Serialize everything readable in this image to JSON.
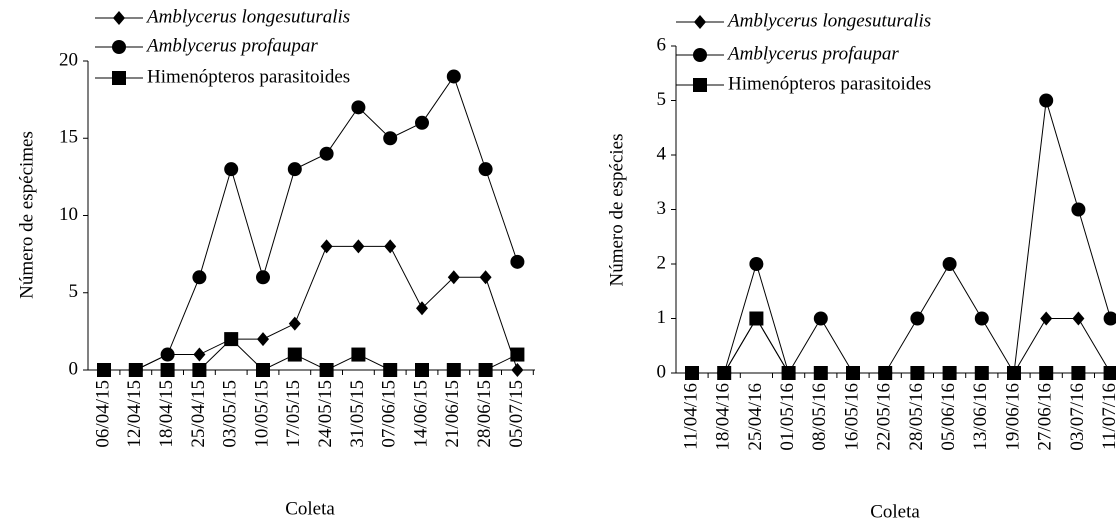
{
  "chart_data": [
    {
      "type": "line",
      "categories": [
        "06/04/15",
        "12/04/15",
        "18/04/15",
        "25/04/15",
        "03/05/15",
        "10/05/15",
        "17/05/15",
        "24/05/15",
        "31/05/15",
        "07/06/15",
        "14/06/15",
        "21/06/15",
        "28/06/15",
        "05/07/15"
      ],
      "series": [
        {
          "name": "Amblycerus longesuturalis",
          "color": "#000000",
          "marker": "diamond",
          "values": [
            0,
            0,
            1,
            1,
            2,
            2,
            3,
            8,
            8,
            8,
            4,
            6,
            6,
            0
          ]
        },
        {
          "name": "Amblycerus profaupar",
          "color": "#000000",
          "marker": "circle",
          "values": [
            0,
            0,
            1,
            6,
            13,
            6,
            13,
            14,
            17,
            15,
            16,
            19,
            13,
            7
          ]
        },
        {
          "name": "Himenópteros parasitoides",
          "color": "#000000",
          "marker": "square",
          "values": [
            0,
            0,
            0,
            0,
            2,
            0,
            1,
            0,
            1,
            0,
            0,
            0,
            0,
            1
          ]
        }
      ],
      "ylabel": "Número de espécimes",
      "xlabel": "Coleta",
      "ylim": [
        0,
        20
      ],
      "yticks": [
        0,
        5,
        10,
        15,
        20
      ],
      "legend": "upper left"
    },
    {
      "type": "line",
      "categories": [
        "11/04/16",
        "18/04/16",
        "25/04/16",
        "01/05/16",
        "08/05/16",
        "16/05/16",
        "22/05/16",
        "28/05/16",
        "05/06/16",
        "13/06/16",
        "19/06/16",
        "27/06/16",
        "03/07/16",
        "11/07/16"
      ],
      "series": [
        {
          "name": "Amblycerus longesuturalis",
          "color": "#000000",
          "marker": "diamond",
          "values": [
            0,
            0,
            1,
            0,
            0,
            0,
            0,
            0,
            0,
            0,
            0,
            1,
            1,
            0
          ]
        },
        {
          "name": "Amblycerus profaupar",
          "color": "#000000",
          "marker": "circle",
          "values": [
            0,
            0,
            2,
            0,
            1,
            0,
            0,
            1,
            2,
            1,
            0,
            5,
            3,
            1
          ]
        },
        {
          "name": "Himenópteros parasitoides",
          "color": "#000000",
          "marker": "square",
          "values": [
            0,
            0,
            1,
            0,
            0,
            0,
            0,
            0,
            0,
            0,
            0,
            0,
            0,
            0
          ]
        }
      ],
      "ylabel": "Número de espécies",
      "xlabel": "Coleta",
      "ylim": [
        0,
        6
      ],
      "yticks": [
        0,
        1,
        2,
        3,
        4,
        5,
        6
      ],
      "legend": "upper left"
    }
  ]
}
